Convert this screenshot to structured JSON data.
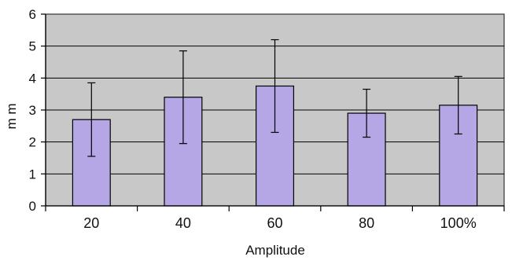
{
  "chart_data": {
    "type": "bar",
    "categories": [
      "20",
      "40",
      "60",
      "80",
      "100%"
    ],
    "values": [
      2.7,
      3.4,
      3.75,
      2.9,
      3.15
    ],
    "error": [
      1.15,
      1.45,
      1.45,
      0.75,
      0.9
    ],
    "title": "",
    "xlabel": "Amplitude",
    "ylabel": "m m",
    "ylim": [
      0,
      6
    ],
    "yticks": [
      "0",
      "1",
      "2",
      "3",
      "4",
      "5",
      "6"
    ],
    "grid": true,
    "legend": "none",
    "colors": {
      "bar": "#b5a6e6",
      "plot_background": "#c8c8c8",
      "grid": "#000000"
    }
  }
}
